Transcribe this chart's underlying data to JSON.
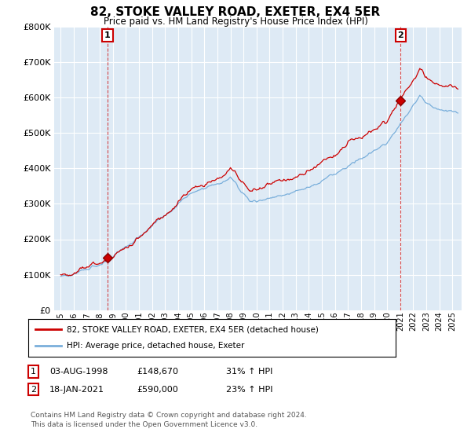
{
  "title": "82, STOKE VALLEY ROAD, EXETER, EX4 5ER",
  "subtitle": "Price paid vs. HM Land Registry's House Price Index (HPI)",
  "ylim": [
    0,
    800000
  ],
  "xlim_start": 1994.5,
  "xlim_end": 2025.7,
  "sale1_year": 1998.58,
  "sale1_price": 148670,
  "sale2_year": 2021.04,
  "sale2_price": 590000,
  "legend_line1": "82, STOKE VALLEY ROAD, EXETER, EX4 5ER (detached house)",
  "legend_line2": "HPI: Average price, detached house, Exeter",
  "footer": "Contains HM Land Registry data © Crown copyright and database right 2024.\nThis data is licensed under the Open Government Licence v3.0.",
  "line_color_red": "#cc0000",
  "line_color_blue": "#7aafdb",
  "background_color": "#ffffff",
  "plot_bg_color": "#deeaf5",
  "grid_color": "#ffffff",
  "row1_date": "03-AUG-1998",
  "row1_price": "£148,670",
  "row1_hpi": "31% ↑ HPI",
  "row2_date": "18-JAN-2021",
  "row2_price": "£590,000",
  "row2_hpi": "23% ↑ HPI"
}
